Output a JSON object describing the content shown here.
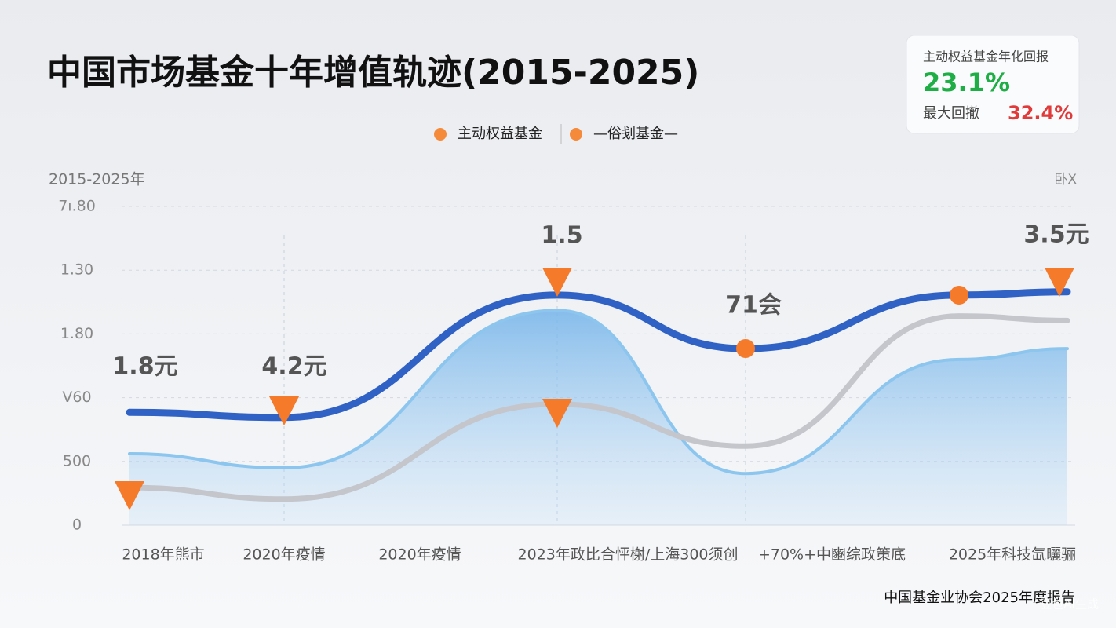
{
  "chart_data": {
    "type": "line",
    "title": "中国市场基金十年增值轨迹(2015-2025)",
    "y_label": "2015-2025年",
    "y_unit_label": "卧X",
    "categories": [
      "2018年熊市",
      "2020年疫情",
      "2020年疫情",
      "2023年政比合怦榭/上海300须创",
      "+70%+中豳综政策底",
      "2025年科技氙曬骊"
    ],
    "series": [
      {
        "name": "主动权益基金",
        "color": "#2f62c4",
        "values": [
          1.77,
          1.69,
          3.61,
          2.77,
          3.61,
          3.66
        ]
      },
      {
        "name": "—俗刬基金—",
        "color": "#c4c6cc",
        "values": [
          0.59,
          0.41,
          1.9,
          1.24,
          3.28,
          3.21
        ]
      },
      {
        "color": "#8cc6ee",
        "area": true,
        "values": [
          1.12,
          0.9,
          3.37,
          0.81,
          2.6,
          2.77
        ]
      }
    ],
    "legend_color": "#f58a3a",
    "ylim": [
      0,
      5
    ],
    "yticks": [
      0,
      {
        "value": 1,
        "label": "500"
      },
      {
        "value": 2,
        "label": "V60"
      },
      {
        "value": 3,
        "label": "1.80"
      },
      {
        "value": 4,
        "label": "1.30"
      },
      {
        "value": 5,
        "label": "7ı.80"
      }
    ],
    "grid": true,
    "annotations": [
      "1.8元",
      "4.2元",
      "1.5",
      "71会",
      "3.5元"
    ],
    "summary": {
      "label": "主动权益基金年化回报",
      "value": "23.1%",
      "drawdown_label": "最大回撤",
      "drawdown": "32.4%"
    },
    "source": "中国基金业协会2025年度报告",
    "watermark": "豆包AI生成"
  }
}
